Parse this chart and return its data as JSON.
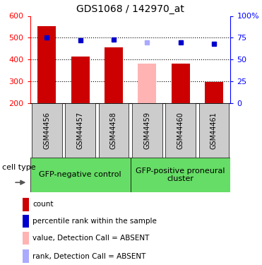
{
  "title": "GDS1068 / 142970_at",
  "samples": [
    "GSM44456",
    "GSM44457",
    "GSM44458",
    "GSM44459",
    "GSM44460",
    "GSM44461"
  ],
  "bar_values": [
    554,
    415,
    456,
    381,
    382,
    298
  ],
  "bar_colors": [
    "#cc0000",
    "#cc0000",
    "#cc0000",
    "#ffb3b3",
    "#cc0000",
    "#cc0000"
  ],
  "rank_values": [
    75,
    72,
    73,
    70,
    70,
    68
  ],
  "rank_colors": [
    "#0000cc",
    "#0000cc",
    "#0000cc",
    "#aaaaff",
    "#0000cc",
    "#0000cc"
  ],
  "ylim_left": [
    200,
    600
  ],
  "ylim_right": [
    0,
    100
  ],
  "yticks_left": [
    200,
    300,
    400,
    500,
    600
  ],
  "yticks_right": [
    0,
    25,
    50,
    75,
    100
  ],
  "ytick_labels_right": [
    "0",
    "25",
    "50",
    "75",
    "100%"
  ],
  "dotted_lines": [
    300,
    400,
    500
  ],
  "group1_label": "GFP-negative control",
  "group2_label": "GFP-positive proneural\ncluster",
  "cell_type_label": "cell type",
  "legend_items": [
    {
      "color": "#cc0000",
      "label": "count"
    },
    {
      "color": "#0000cc",
      "label": "percentile rank within the sample"
    },
    {
      "color": "#ffb3b3",
      "label": "value, Detection Call = ABSENT"
    },
    {
      "color": "#aaaaff",
      "label": "rank, Detection Call = ABSENT"
    }
  ],
  "bar_width": 0.55,
  "green_bg": "#66dd66",
  "gray_bg": "#cccccc",
  "title_fontsize": 10,
  "tick_fontsize": 8,
  "sample_fontsize": 7,
  "legend_fontsize": 7.5,
  "group_fontsize": 8
}
